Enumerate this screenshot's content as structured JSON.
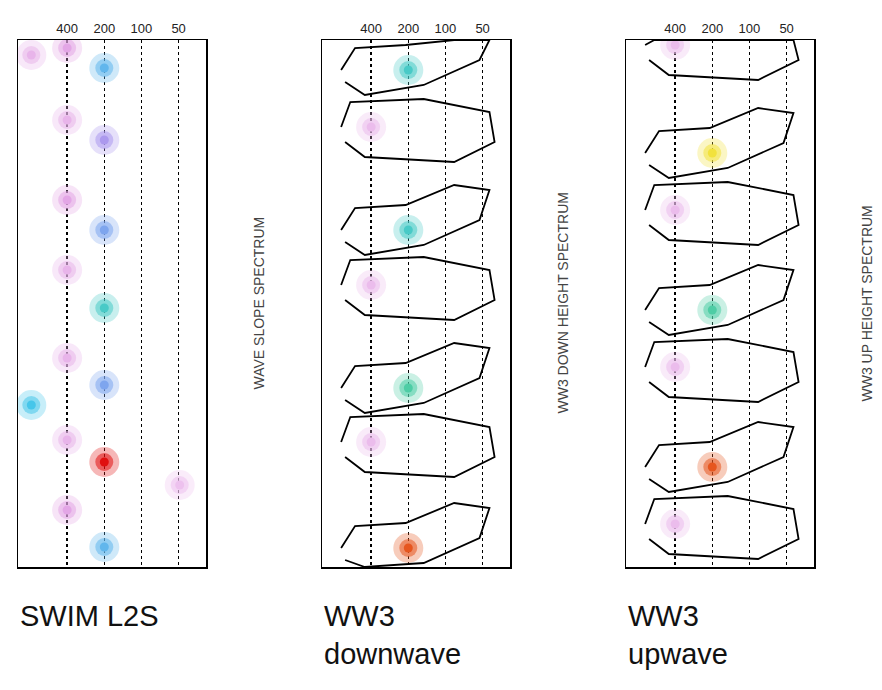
{
  "chart_data": [
    {
      "type": "scatter",
      "title": "WAVE SLOPE SPECTRUM",
      "subtitle": "SWIM L2S",
      "log": "x",
      "xlim": [
        1000,
        30
      ],
      "xticks": [
        400,
        200,
        100,
        50
      ],
      "ylim": [
        527,
        0
      ],
      "grid": true,
      "tick_labels": "x",
      "intensity_range": [
        0,
        1
      ],
      "peaks": {
        "x": [
          200,
          400,
          780,
          400,
          200,
          400,
          200,
          400,
          200,
          400,
          200,
          780,
          400,
          200,
          49,
          400,
          200
        ],
        "y": [
          28,
          8,
          15,
          80,
          100,
          160,
          190,
          230,
          268,
          318,
          345,
          365,
          400,
          422,
          445,
          470,
          507
        ],
        "intensity": [
          0.5,
          0.2,
          0.15,
          0.15,
          0.35,
          0.2,
          0.45,
          0.15,
          0.6,
          0.15,
          0.45,
          0.55,
          0.15,
          1.0,
          0.1,
          0.2,
          0.5
        ]
      },
      "ellipses": [
        {
          "x": [
            282,
            127
          ],
          "y": [
            15,
            42
          ]
        },
        {
          "x": [
            490,
            320
          ],
          "y": [
            0,
            15
          ]
        },
        {
          "x": [
            936,
            647
          ],
          "y": [
            10,
            22
          ]
        },
        {
          "x": [
            490,
            327
          ],
          "y": [
            68,
            92
          ]
        },
        {
          "x": [
            298,
            112
          ],
          "y": [
            90,
            115
          ]
        },
        {
          "x": [
            540,
            327
          ],
          "y": [
            148,
            177
          ]
        },
        {
          "x": [
            309,
            122
          ],
          "y": [
            178,
            205
          ]
        },
        {
          "x": [
            509,
            358
          ],
          "y": [
            220,
            243
          ]
        },
        {
          "x": [
            372,
            93
          ],
          "y": [
            255,
            282
          ]
        },
        {
          "x": [
            518,
            339
          ],
          "y": [
            307,
            331
          ]
        },
        {
          "x": [
            339,
            112
          ],
          "y": [
            333,
            358
          ]
        },
        {
          "x": [
            971,
            473
          ],
          "y": [
            356,
            375
          ]
        },
        {
          "x": [
            473,
            332
          ],
          "y": [
            390,
            410
          ]
        },
        {
          "x": [
            358,
            102
          ],
          "y": [
            410,
            438
          ]
        },
        {
          "x": [
            64,
            42
          ],
          "y": [
            440,
            450
          ]
        },
        {
          "x": [
            518,
            327
          ],
          "y": [
            457,
            482
          ]
        },
        {
          "x": [
            327,
            106
          ],
          "y": [
            495,
            518
          ]
        }
      ]
    },
    {
      "type": "scatter",
      "title": "WW3 DOWN HEIGHT SPECTRUM",
      "subtitle": "WW3 downwave",
      "log": "x",
      "xlim": [
        1000,
        30
      ],
      "xticks": [
        400,
        200,
        100,
        50
      ],
      "ylim": [
        527,
        0
      ],
      "grid": true,
      "tick_labels": "x",
      "intensity_range": [
        0,
        1
      ],
      "peaks": {
        "x": [
          200,
          400,
          200,
          400,
          200,
          400,
          200
        ],
        "y": [
          30,
          87,
          190,
          245,
          348,
          402,
          508
        ],
        "intensity": [
          0.6,
          0.12,
          0.6,
          0.12,
          0.65,
          0.12,
          0.95
        ]
      },
      "contours": [
        {
          "x": [
            700,
            540,
            210,
            85,
            44,
            53,
            150,
            450,
            650
          ],
          "y": [
            30,
            8,
            5,
            0,
            0,
            20,
            45,
            55,
            42
          ]
        },
        {
          "x": [
            700,
            590,
            150,
            44,
            40,
            85,
            450,
            650
          ],
          "y": [
            87,
            62,
            59,
            72,
            102,
            122,
            117,
            102
          ]
        },
        {
          "x": [
            700,
            540,
            210,
            85,
            44,
            53,
            150,
            450,
            650
          ],
          "y": [
            190,
            168,
            165,
            145,
            150,
            180,
            205,
            215,
            202
          ]
        },
        {
          "x": [
            700,
            590,
            150,
            44,
            40,
            85,
            450,
            650
          ],
          "y": [
            245,
            220,
            217,
            230,
            260,
            280,
            275,
            260
          ]
        },
        {
          "x": [
            700,
            540,
            210,
            85,
            44,
            53,
            150,
            450,
            650
          ],
          "y": [
            348,
            326,
            323,
            303,
            308,
            338,
            363,
            373,
            360
          ]
        },
        {
          "x": [
            700,
            590,
            150,
            44,
            40,
            85,
            450,
            650
          ],
          "y": [
            402,
            377,
            374,
            387,
            417,
            437,
            432,
            417
          ]
        },
        {
          "x": [
            700,
            540,
            210,
            85,
            44,
            53,
            150,
            450,
            650
          ],
          "y": [
            508,
            486,
            483,
            463,
            468,
            498,
            523,
            527,
            520
          ]
        }
      ]
    },
    {
      "type": "scatter",
      "title": "WW3 UP HEIGHT SPECTRUM",
      "subtitle": "WW3 upwave",
      "log": "x",
      "xlim": [
        1000,
        30
      ],
      "xticks": [
        400,
        200,
        100,
        50
      ],
      "ylim": [
        527,
        0
      ],
      "grid": true,
      "tick_labels": "x",
      "intensity_range": [
        0,
        1
      ],
      "peaks": {
        "x": [
          400,
          200,
          400,
          200,
          400,
          200,
          400
        ],
        "y": [
          5,
          113,
          170,
          270,
          327,
          427,
          484
        ],
        "intensity": [
          0.12,
          0.85,
          0.12,
          0.65,
          0.12,
          0.95,
          0.12
        ]
      },
      "contours": [
        {
          "x": [
            700,
            590,
            44,
            40,
            85,
            450,
            650
          ],
          "y": [
            5,
            0,
            0,
            20,
            40,
            35,
            20
          ]
        },
        {
          "x": [
            700,
            540,
            210,
            85,
            44,
            53,
            150,
            450,
            650
          ],
          "y": [
            113,
            91,
            88,
            68,
            73,
            103,
            128,
            138,
            125
          ]
        },
        {
          "x": [
            700,
            590,
            150,
            44,
            40,
            85,
            450,
            650
          ],
          "y": [
            170,
            145,
            142,
            155,
            185,
            205,
            200,
            185
          ]
        },
        {
          "x": [
            700,
            540,
            210,
            85,
            44,
            53,
            150,
            450,
            650
          ],
          "y": [
            270,
            248,
            245,
            225,
            230,
            260,
            285,
            295,
            282
          ]
        },
        {
          "x": [
            700,
            590,
            150,
            44,
            40,
            85,
            450,
            650
          ],
          "y": [
            327,
            302,
            299,
            312,
            342,
            362,
            357,
            342
          ]
        },
        {
          "x": [
            700,
            540,
            210,
            85,
            44,
            53,
            150,
            450,
            650
          ],
          "y": [
            427,
            405,
            402,
            382,
            387,
            417,
            442,
            452,
            439
          ]
        },
        {
          "x": [
            700,
            590,
            150,
            44,
            40,
            85,
            450,
            650
          ],
          "y": [
            484,
            459,
            456,
            469,
            499,
            519,
            514,
            499
          ]
        }
      ]
    }
  ]
}
